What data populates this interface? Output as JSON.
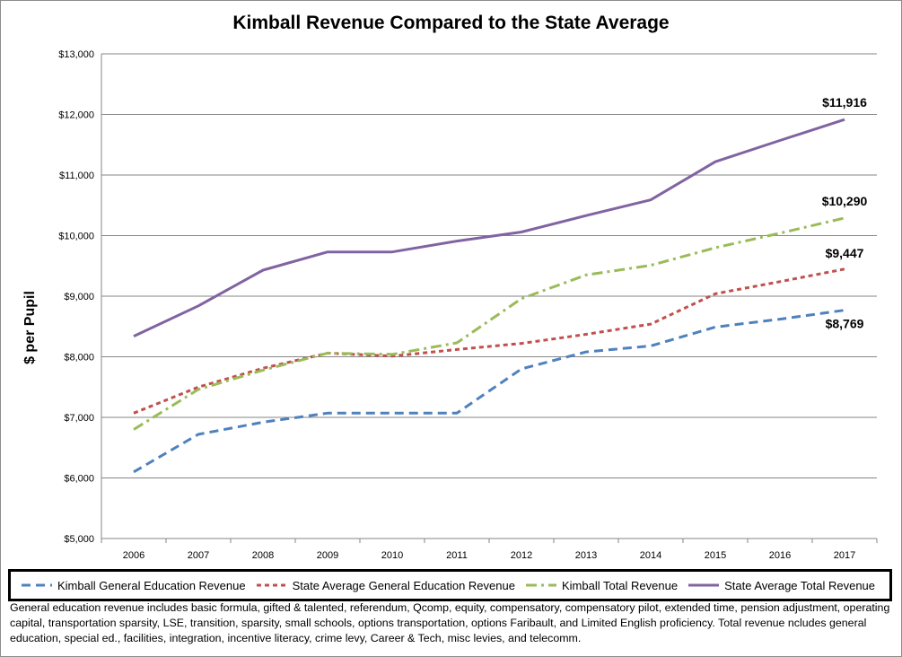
{
  "chart_data": {
    "type": "line",
    "title": "Kimball Revenue Compared to the State Average",
    "ylabel": "$ per Pupil",
    "ylim": [
      5000,
      13000
    ],
    "yticks": [
      "$5,000",
      "$6,000",
      "$7,000",
      "$8,000",
      "$9,000",
      "$10,000",
      "$11,000",
      "$12,000",
      "$13,000"
    ],
    "yticks_values": [
      5000,
      6000,
      7000,
      8000,
      9000,
      10000,
      11000,
      12000,
      13000
    ],
    "categories": [
      "2006",
      "2007",
      "2008",
      "2009",
      "2010",
      "2011",
      "2012",
      "2013",
      "2014",
      "2015",
      "2016",
      "2017"
    ],
    "grid": "horizontal",
    "legend": "bottom",
    "series": [
      {
        "name": "Kimball General Education Revenue",
        "color": "#4f81bd",
        "dash": "dashed",
        "values": [
          6100,
          6720,
          6920,
          7070,
          7070,
          7070,
          7800,
          8080,
          8180,
          8490,
          8620,
          8769
        ]
      },
      {
        "name": "State Average General Education Revenue",
        "color": "#c0504d",
        "dash": "dotted",
        "values": [
          7070,
          7500,
          7810,
          8060,
          8010,
          8120,
          8220,
          8370,
          8540,
          9040,
          9240,
          9447
        ]
      },
      {
        "name": "Kimball Total Revenue",
        "color": "#9bbb59",
        "dash": "dashdot",
        "values": [
          6800,
          7460,
          7780,
          8060,
          8040,
          8230,
          8960,
          9350,
          9510,
          9800,
          10040,
          10290
        ]
      },
      {
        "name": "State Average Total Revenue",
        "color": "#8064a2",
        "dash": "solid",
        "values": [
          8340,
          8840,
          9430,
          9730,
          9730,
          9910,
          10060,
          10330,
          10590,
          11220,
          11570,
          11916
        ]
      }
    ],
    "annotations": [
      "$11,916",
      "$10,290",
      "$9,447",
      "$8,769"
    ],
    "annotation_values": [
      11916,
      10290,
      9447,
      8769
    ]
  },
  "footnote": "General education revenue includes basic formula, gifted & talented, referendum, Qcomp, equity, compensatory, compensatory pilot, extended time, pension adjustment, operating capital, transportation sparsity, LSE, transition, sparsity, small schools, options transportation, options Faribault, and Limited English proficiency.  Total revenue ncludes general education, special ed., facilities, integration, incentive literacy, crime levy, Career & Tech, misc levies, and telecomm."
}
